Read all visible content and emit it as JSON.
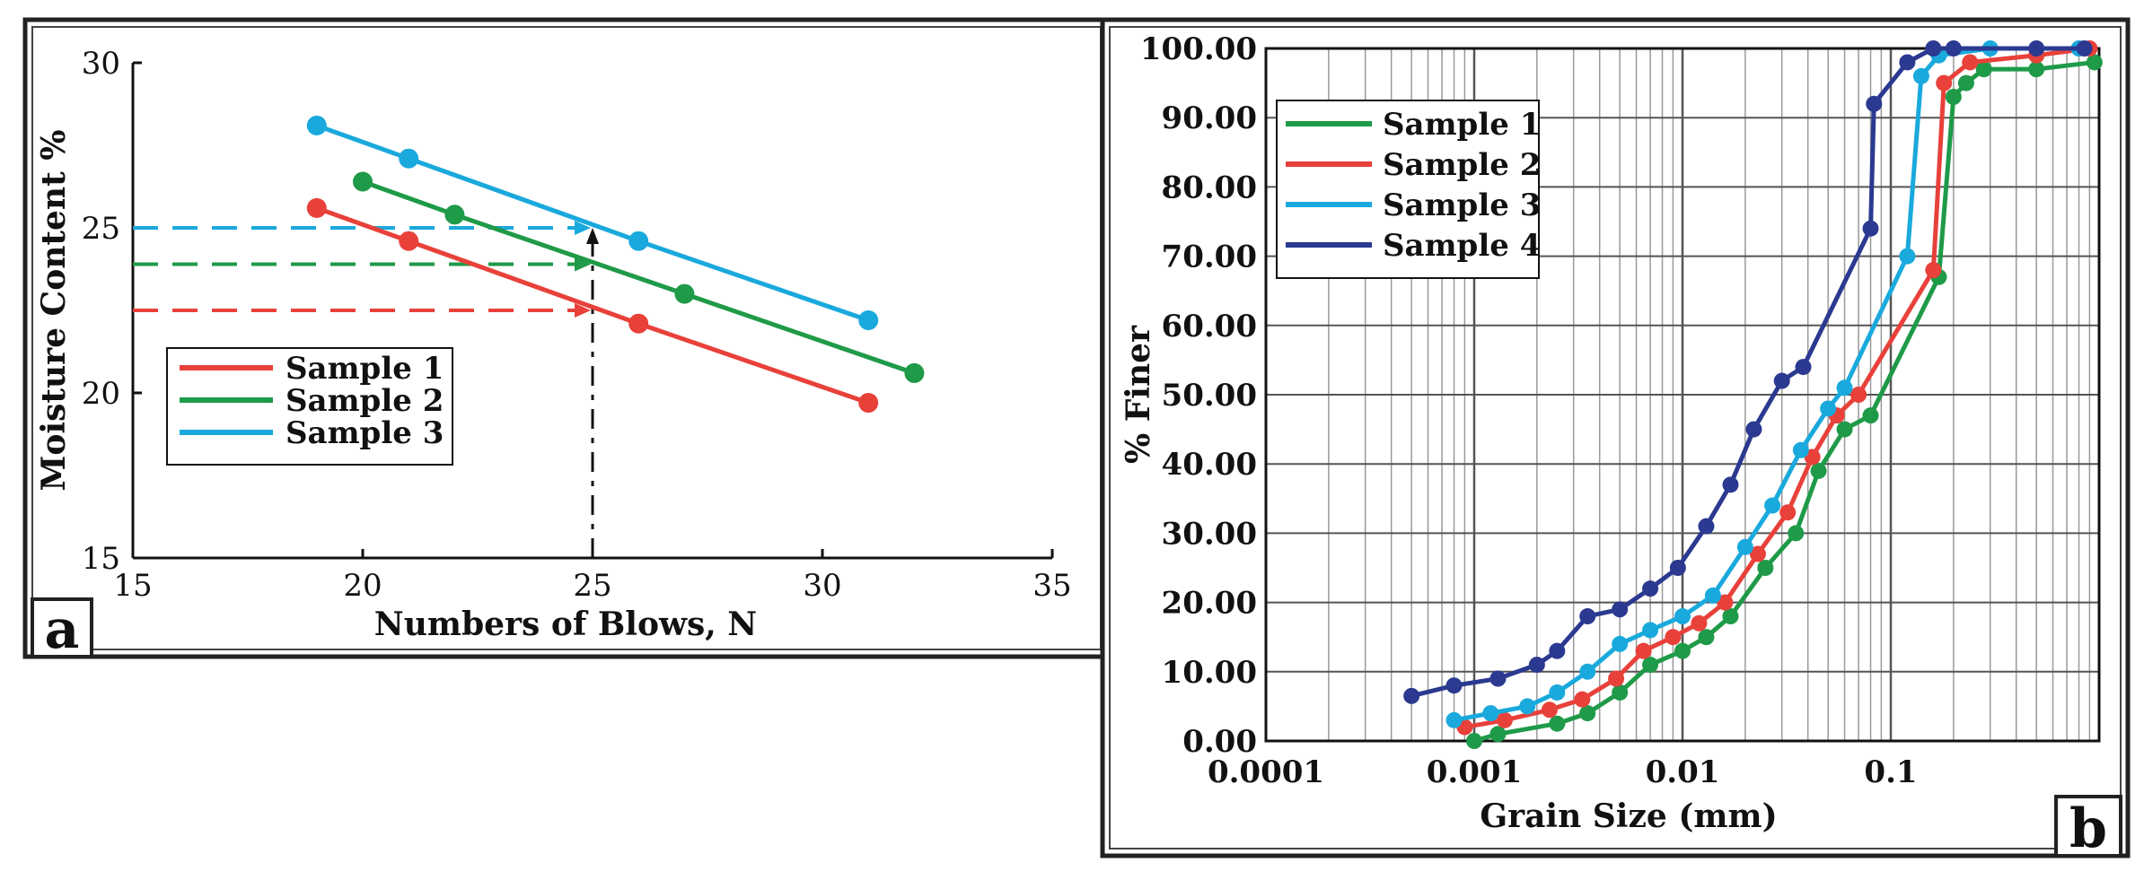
{
  "chart_data": [
    {
      "type": "line",
      "panel": "a",
      "title": "",
      "xlabel": "Numbers of Blows, N",
      "ylabel": "Moisture Content %",
      "xlim": [
        15,
        35
      ],
      "ylim": [
        15,
        30
      ],
      "xticks": [
        15,
        20,
        25,
        30,
        35
      ],
      "yticks": [
        15,
        20,
        25,
        30
      ],
      "grid": false,
      "legend_position": "bottom-left",
      "series": [
        {
          "name": "Sample 1",
          "color": "#e8413a",
          "x": [
            19,
            21,
            26,
            31
          ],
          "y": [
            25.6,
            24.6,
            22.1,
            19.7
          ]
        },
        {
          "name": "Sample 2",
          "color": "#1f9a48",
          "x": [
            20,
            22,
            27,
            32
          ],
          "y": [
            26.4,
            25.4,
            23.0,
            20.6
          ]
        },
        {
          "name": "Sample 3",
          "color": "#1aa9dc",
          "x": [
            19,
            21,
            26,
            31
          ],
          "y": [
            28.1,
            27.1,
            24.6,
            22.2
          ]
        }
      ],
      "annotations": [
        {
          "kind": "horizontal-dashed",
          "series": "Sample 3",
          "y": 25.0,
          "x_from": 15,
          "x_to": 25
        },
        {
          "kind": "horizontal-dashed",
          "series": "Sample 2",
          "y": 23.9,
          "x_from": 15,
          "x_to": 25
        },
        {
          "kind": "horizontal-dashed",
          "series": "Sample 1",
          "y": 22.5,
          "x_from": 15,
          "x_to": 25
        },
        {
          "kind": "vertical-dashed",
          "x": 25,
          "y_from": 15,
          "y_to": 25
        }
      ]
    },
    {
      "type": "line",
      "panel": "b",
      "title": "",
      "xlabel": "Grain Size (mm)",
      "ylabel": "% Finer",
      "xscale": "log",
      "xlim": [
        0.0001,
        1
      ],
      "ylim": [
        0,
        100
      ],
      "xticks": [
        0.0001,
        0.001,
        0.01,
        0.1
      ],
      "xtick_labels": [
        "0.0001",
        "0.001",
        "0.01",
        "0.1"
      ],
      "yticks": [
        0,
        10,
        20,
        30,
        40,
        50,
        60,
        70,
        80,
        90,
        100
      ],
      "ytick_labels": [
        "0.00",
        "10.00",
        "20.00",
        "30.00",
        "40.00",
        "50.00",
        "60.00",
        "70.00",
        "80.00",
        "90.00",
        "100.00"
      ],
      "grid": true,
      "legend_position": "top-left",
      "series": [
        {
          "name": "Sample 1",
          "color": "#1f9a48",
          "x": [
            0.001,
            0.0013,
            0.0025,
            0.0035,
            0.005,
            0.007,
            0.01,
            0.013,
            0.017,
            0.025,
            0.035,
            0.045,
            0.06,
            0.08,
            0.17,
            0.2,
            0.23,
            0.28,
            0.5,
            0.95
          ],
          "y": [
            0,
            1,
            2.5,
            4,
            7,
            11,
            13,
            15,
            18,
            25,
            30,
            39,
            45,
            47,
            67,
            93,
            95,
            97,
            97,
            98
          ]
        },
        {
          "name": "Sample 2",
          "color": "#e8413a",
          "x": [
            0.0009,
            0.0014,
            0.0023,
            0.0033,
            0.0048,
            0.0065,
            0.009,
            0.012,
            0.016,
            0.023,
            0.032,
            0.042,
            0.055,
            0.07,
            0.16,
            0.18,
            0.24,
            0.5,
            0.9
          ],
          "y": [
            2,
            3,
            4.5,
            6,
            9,
            13,
            15,
            17,
            20,
            27,
            33,
            41,
            47,
            50,
            68,
            95,
            98,
            99,
            100
          ]
        },
        {
          "name": "Sample 3",
          "color": "#1aa9dc",
          "x": [
            0.0008,
            0.0012,
            0.0018,
            0.0025,
            0.0035,
            0.005,
            0.007,
            0.01,
            0.014,
            0.02,
            0.027,
            0.037,
            0.05,
            0.06,
            0.12,
            0.14,
            0.17,
            0.3,
            0.8
          ],
          "y": [
            3,
            4,
            5,
            7,
            10,
            14,
            16,
            18,
            21,
            28,
            34,
            42,
            48,
            51,
            70,
            96,
            99,
            100,
            100
          ]
        },
        {
          "name": "Sample 4",
          "color": "#2b3990",
          "x": [
            0.0005,
            0.0008,
            0.0013,
            0.002,
            0.0025,
            0.0035,
            0.005,
            0.007,
            0.0095,
            0.013,
            0.017,
            0.022,
            0.03,
            0.038,
            0.08,
            0.083,
            0.12,
            0.16,
            0.2,
            0.5,
            0.85
          ],
          "y": [
            6.5,
            8,
            9,
            11,
            13,
            18,
            19,
            22,
            25,
            31,
            37,
            45,
            52,
            54,
            74,
            92,
            98,
            100,
            100,
            100,
            100
          ]
        }
      ]
    }
  ],
  "panel_a": {
    "letter": "a"
  },
  "panel_b": {
    "letter": "b"
  }
}
